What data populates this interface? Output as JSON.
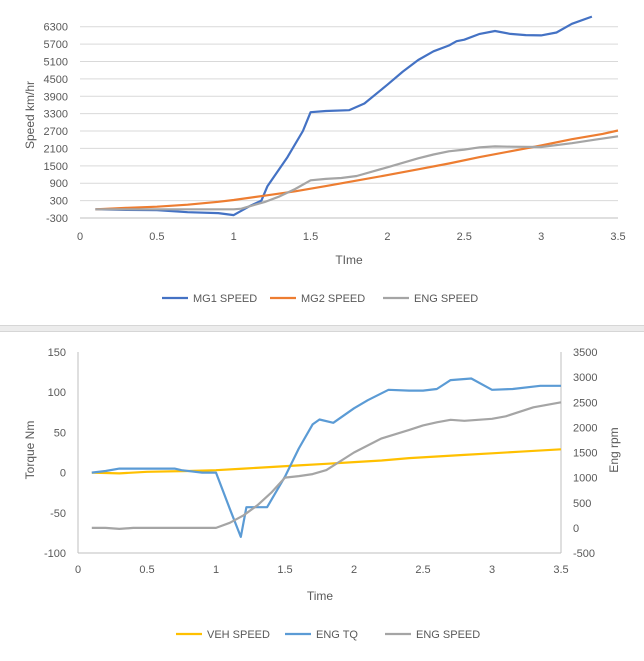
{
  "chart_data": [
    {
      "type": "line",
      "title": "",
      "xlabel": "TIme",
      "ylabel": "Speed km/hr",
      "xlim": [
        0,
        3.5
      ],
      "ylim": [
        -300,
        6600
      ],
      "x_ticks": [
        "0",
        "0.5",
        "1",
        "1.5",
        "2",
        "2.5",
        "3",
        "3.5"
      ],
      "y_ticks": [
        "-300",
        "300",
        "900",
        "1500",
        "2100",
        "2700",
        "3300",
        "3900",
        "4500",
        "5100",
        "5700",
        "6300"
      ],
      "x_tick_values": [
        0,
        0.5,
        1,
        1.5,
        2,
        2.5,
        3,
        3.5
      ],
      "y_tick_values": [
        -300,
        300,
        900,
        1500,
        2100,
        2700,
        3300,
        3900,
        4500,
        5100,
        5700,
        6300
      ],
      "grid": "horizontal",
      "legend_position": "bottom",
      "series": [
        {
          "name": "MG1 SPEED",
          "color": "#4472C4",
          "points": [
            [
              0.1,
              0
            ],
            [
              0.3,
              -20
            ],
            [
              0.5,
              -30
            ],
            [
              0.7,
              -100
            ],
            [
              0.9,
              -130
            ],
            [
              1.0,
              -200
            ],
            [
              1.1,
              100
            ],
            [
              1.18,
              300
            ],
            [
              1.22,
              800
            ],
            [
              1.35,
              1800
            ],
            [
              1.45,
              2700
            ],
            [
              1.5,
              3350
            ],
            [
              1.6,
              3390
            ],
            [
              1.75,
              3420
            ],
            [
              1.85,
              3650
            ],
            [
              2.0,
              4300
            ],
            [
              2.1,
              4750
            ],
            [
              2.2,
              5150
            ],
            [
              2.3,
              5450
            ],
            [
              2.4,
              5650
            ],
            [
              2.45,
              5800
            ],
            [
              2.5,
              5850
            ],
            [
              2.6,
              6050
            ],
            [
              2.7,
              6150
            ],
            [
              2.8,
              6050
            ],
            [
              2.9,
              6010
            ],
            [
              3.0,
              6000
            ],
            [
              3.1,
              6100
            ],
            [
              3.2,
              6400
            ],
            [
              3.33,
              6650
            ]
          ]
        },
        {
          "name": "MG2 SPEED",
          "color": "#ED7D31",
          "points": [
            [
              0.1,
              0
            ],
            [
              0.3,
              50
            ],
            [
              0.5,
              90
            ],
            [
              0.7,
              160
            ],
            [
              0.9,
              260
            ],
            [
              1.0,
              320
            ],
            [
              1.2,
              470
            ],
            [
              1.4,
              620
            ],
            [
              1.6,
              800
            ],
            [
              1.8,
              990
            ],
            [
              2.0,
              1180
            ],
            [
              2.2,
              1380
            ],
            [
              2.4,
              1580
            ],
            [
              2.6,
              1800
            ],
            [
              2.8,
              2000
            ],
            [
              3.0,
              2200
            ],
            [
              3.2,
              2420
            ],
            [
              3.4,
              2600
            ],
            [
              3.5,
              2720
            ]
          ]
        },
        {
          "name": "ENG SPEED",
          "color": "#A5A5A5",
          "points": [
            [
              0.1,
              0
            ],
            [
              0.3,
              0
            ],
            [
              0.6,
              0
            ],
            [
              0.8,
              0
            ],
            [
              1.0,
              0
            ],
            [
              1.05,
              20
            ],
            [
              1.1,
              100
            ],
            [
              1.2,
              250
            ],
            [
              1.3,
              450
            ],
            [
              1.4,
              700
            ],
            [
              1.5,
              1000
            ],
            [
              1.6,
              1050
            ],
            [
              1.7,
              1080
            ],
            [
              1.8,
              1150
            ],
            [
              2.0,
              1450
            ],
            [
              2.2,
              1760
            ],
            [
              2.3,
              1890
            ],
            [
              2.4,
              2000
            ],
            [
              2.5,
              2060
            ],
            [
              2.6,
              2140
            ],
            [
              2.7,
              2170
            ],
            [
              2.8,
              2160
            ],
            [
              3.0,
              2150
            ],
            [
              3.2,
              2280
            ],
            [
              3.35,
              2400
            ],
            [
              3.5,
              2520
            ]
          ]
        }
      ]
    },
    {
      "type": "line",
      "title": "",
      "xlabel": "Time",
      "ylabel": "Torque Nm",
      "y2label": "Eng rpm",
      "xlim": [
        0,
        3.5
      ],
      "ylim": [
        -100,
        150
      ],
      "y2lim": [
        -500,
        3500
      ],
      "x_ticks": [
        "0",
        "0.5",
        "1",
        "1.5",
        "2",
        "2.5",
        "3",
        "3.5"
      ],
      "y_ticks": [
        "-100",
        "-50",
        "0",
        "50",
        "100",
        "150"
      ],
      "y2_ticks": [
        "-500",
        "0",
        "500",
        "1000",
        "1500",
        "2000",
        "2500",
        "3000",
        "3500"
      ],
      "x_tick_values": [
        0,
        0.5,
        1,
        1.5,
        2,
        2.5,
        3,
        3.5
      ],
      "y_tick_values": [
        -100,
        -50,
        0,
        50,
        100,
        150
      ],
      "y2_tick_values": [
        -500,
        0,
        500,
        1000,
        1500,
        2000,
        2500,
        3000,
        3500
      ],
      "grid": "none",
      "legend_position": "bottom",
      "series": [
        {
          "name": "VEH SPEED",
          "axis": "left",
          "color": "#FFC000",
          "points": [
            [
              0.1,
              0
            ],
            [
              0.3,
              -1
            ],
            [
              0.5,
              1
            ],
            [
              0.8,
              2
            ],
            [
              1.0,
              3
            ],
            [
              1.2,
              5
            ],
            [
              1.4,
              7
            ],
            [
              1.6,
              9
            ],
            [
              1.8,
              11
            ],
            [
              2.0,
              13
            ],
            [
              2.2,
              15
            ],
            [
              2.4,
              18
            ],
            [
              2.6,
              20
            ],
            [
              2.8,
              22
            ],
            [
              3.0,
              24
            ],
            [
              3.2,
              26
            ],
            [
              3.5,
              29
            ]
          ]
        },
        {
          "name": "ENG TQ",
          "axis": "left",
          "color": "#5B9BD5",
          "points": [
            [
              0.1,
              0
            ],
            [
              0.2,
              2
            ],
            [
              0.3,
              5
            ],
            [
              0.5,
              5
            ],
            [
              0.7,
              5
            ],
            [
              0.75,
              3
            ],
            [
              0.9,
              0
            ],
            [
              1.0,
              0
            ],
            [
              1.1,
              -45
            ],
            [
              1.18,
              -80
            ],
            [
              1.22,
              -43
            ],
            [
              1.3,
              -43
            ],
            [
              1.37,
              -43
            ],
            [
              1.5,
              -5
            ],
            [
              1.6,
              30
            ],
            [
              1.7,
              60
            ],
            [
              1.75,
              66
            ],
            [
              1.85,
              62
            ],
            [
              2.0,
              80
            ],
            [
              2.1,
              90
            ],
            [
              2.25,
              103
            ],
            [
              2.4,
              102
            ],
            [
              2.5,
              102
            ],
            [
              2.6,
              104
            ],
            [
              2.7,
              115
            ],
            [
              2.85,
              117
            ],
            [
              3.0,
              103
            ],
            [
              3.15,
              104
            ],
            [
              3.35,
              108
            ],
            [
              3.5,
              108
            ]
          ]
        },
        {
          "name": "ENG SPEED",
          "axis": "right",
          "color": "#A5A5A5",
          "points": [
            [
              0.1,
              0
            ],
            [
              0.2,
              0
            ],
            [
              0.3,
              -20
            ],
            [
              0.4,
              0
            ],
            [
              0.6,
              0
            ],
            [
              0.8,
              0
            ],
            [
              1.0,
              0
            ],
            [
              1.1,
              100
            ],
            [
              1.2,
              250
            ],
            [
              1.3,
              450
            ],
            [
              1.4,
              700
            ],
            [
              1.5,
              1000
            ],
            [
              1.6,
              1030
            ],
            [
              1.7,
              1070
            ],
            [
              1.8,
              1150
            ],
            [
              2.0,
              1500
            ],
            [
              2.2,
              1780
            ],
            [
              2.4,
              1950
            ],
            [
              2.5,
              2040
            ],
            [
              2.6,
              2100
            ],
            [
              2.7,
              2150
            ],
            [
              2.8,
              2130
            ],
            [
              3.0,
              2170
            ],
            [
              3.1,
              2220
            ],
            [
              3.3,
              2400
            ],
            [
              3.5,
              2500
            ]
          ]
        }
      ]
    }
  ]
}
